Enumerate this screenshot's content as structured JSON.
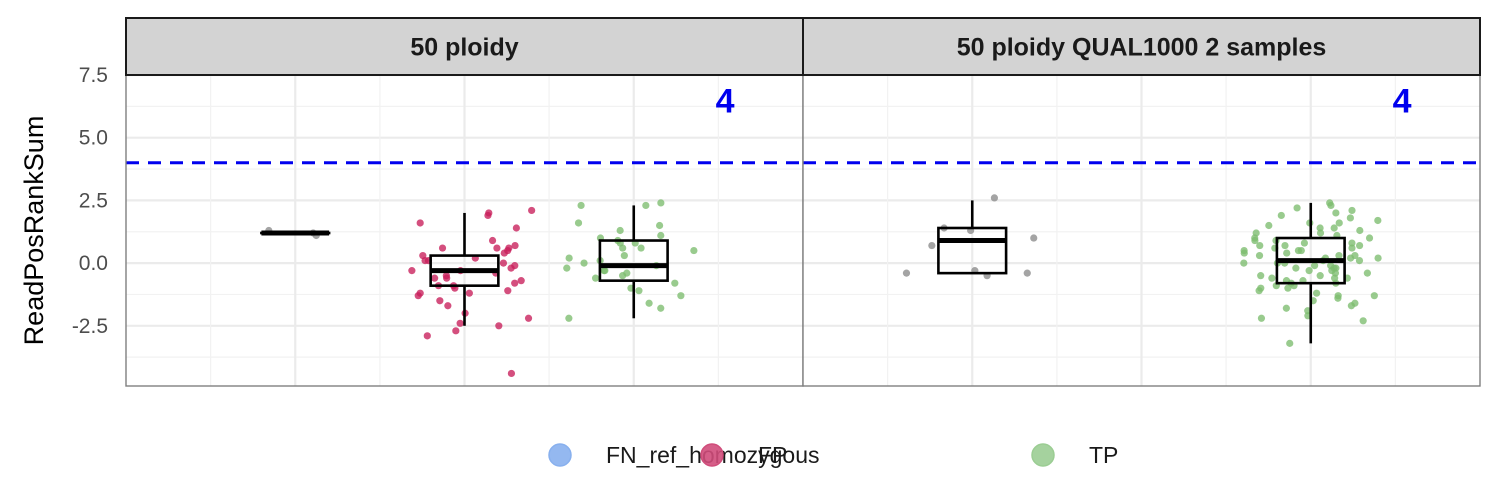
{
  "chart_data": {
    "type": "boxplot-jitter",
    "ylabel": "ReadPosRankSum",
    "ylim": [
      -4.9,
      7.5
    ],
    "yticks": [
      -2.5,
      0.0,
      2.5,
      5.0,
      7.5
    ],
    "ytick_labels": [
      "-2.5",
      "0.0",
      "2.5",
      "5.0",
      "7.5"
    ],
    "grid": true,
    "legend_position": "bottom",
    "threshold": {
      "value": 4,
      "label": "4",
      "color": "#0000ee",
      "style": "dashed"
    },
    "categories": [
      "FN_ref_homozygous",
      "FP",
      "TP"
    ],
    "colors": {
      "FN_ref_homozygous": "#88b0ee",
      "FP": "#d04d7b",
      "TP": "#9bcd93",
      "FN_points": "#8a8a8a",
      "FP_points": "#c81e5a",
      "TP_points": "#7cbd6e"
    },
    "panels": [
      {
        "title": "50 ploidy",
        "groups": [
          {
            "category": "FN_ref_homozygous",
            "box": {
              "q1": 1.2,
              "median": 1.2,
              "q3": 1.2,
              "lower": 1.2,
              "upper": 1.2
            },
            "points": [
              1.1,
              1.3,
              1.2
            ]
          },
          {
            "category": "FP",
            "box": {
              "q1": -0.9,
              "median": -0.3,
              "q3": 0.3,
              "lower": -2.5,
              "upper": 2.0
            },
            "points": [
              2.1,
              2.0,
              1.9,
              1.6,
              1.4,
              0.9,
              0.6,
              0.6,
              0.6,
              0.4,
              0.3,
              0.2,
              0.1,
              0.1,
              0.0,
              -0.1,
              -0.2,
              -0.3,
              -0.3,
              -0.4,
              -0.5,
              -0.6,
              -0.6,
              -0.7,
              -0.8,
              -0.9,
              -1.0,
              -1.1,
              -1.2,
              -1.3,
              -1.5,
              -1.7,
              -2.0,
              -2.2,
              -2.4,
              -2.5,
              -2.9,
              -2.7,
              0.7,
              0.5,
              -0.9,
              -1.2,
              -4.4
            ]
          },
          {
            "category": "TP",
            "box": {
              "q1": -0.7,
              "median": -0.1,
              "q3": 0.9,
              "lower": -2.2,
              "upper": 2.3
            },
            "points": [
              2.4,
              2.3,
              2.3,
              1.6,
              1.5,
              1.3,
              1.1,
              1.0,
              0.9,
              0.8,
              0.6,
              0.5,
              0.3,
              0.2,
              0.1,
              0.0,
              -0.1,
              -0.2,
              -0.3,
              -0.3,
              -0.5,
              -0.6,
              -0.8,
              -1.0,
              -1.1,
              -1.3,
              -1.6,
              -1.8,
              -2.2,
              0.6,
              -0.4,
              0.8
            ]
          }
        ]
      },
      {
        "title": "50 ploidy QUAL1000 2 samples",
        "groups": [
          {
            "category": "FN_ref_homozygous",
            "box": {
              "q1": -0.4,
              "median": 0.9,
              "q3": 1.4,
              "lower": -0.4,
              "upper": 2.5
            },
            "points": [
              2.6,
              1.4,
              1.3,
              1.0,
              0.7,
              -0.3,
              -0.4,
              -0.5,
              -0.4
            ]
          },
          {
            "category": "FP",
            "box": null,
            "points": []
          },
          {
            "category": "TP",
            "box": {
              "q1": -0.8,
              "median": 0.1,
              "q3": 1.0,
              "lower": -3.2,
              "upper": 2.4
            },
            "points": [
              2.4,
              2.3,
              2.2,
              2.1,
              2.0,
              1.9,
              1.8,
              1.7,
              1.6,
              1.5,
              1.4,
              1.4,
              1.3,
              1.2,
              1.1,
              1.0,
              1.0,
              0.9,
              0.9,
              0.8,
              0.8,
              0.7,
              0.7,
              0.6,
              0.6,
              0.5,
              0.5,
              0.4,
              0.4,
              0.3,
              0.3,
              0.2,
              0.2,
              0.1,
              0.1,
              0.0,
              0.0,
              0.0,
              -0.1,
              -0.1,
              -0.2,
              -0.2,
              -0.3,
              -0.3,
              -0.4,
              -0.4,
              -0.5,
              -0.5,
              -0.6,
              -0.6,
              -0.7,
              -0.7,
              -0.8,
              -0.8,
              -0.9,
              -0.9,
              -1.0,
              -1.1,
              -1.2,
              -1.3,
              -1.4,
              -1.5,
              -1.6,
              -1.7,
              -1.8,
              -1.9,
              -2.1,
              -2.2,
              -2.3,
              -3.2,
              0.5,
              0.2,
              -0.2,
              1.2,
              -1.0,
              0.3,
              0.7,
              -0.6,
              1.6,
              -1.3
            ]
          }
        ]
      }
    ]
  }
}
